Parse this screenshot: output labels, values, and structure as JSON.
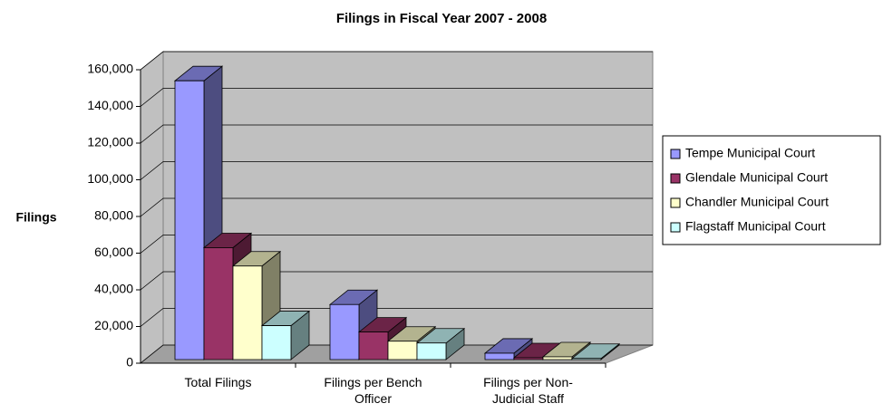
{
  "chart_data": {
    "type": "bar3d",
    "title": "Filings in Fiscal Year 2007 - 2008",
    "y_label": "Filings",
    "categories": [
      "Total Filings",
      "Filings per Bench Officer",
      "Filings per Non-Judicial Staff"
    ],
    "series": [
      {
        "name": "Tempe Municipal Court",
        "color": "#9999ff",
        "values": [
          152000,
          30000,
          3500
        ]
      },
      {
        "name": "Glendale Municipal Court",
        "color": "#993366",
        "values": [
          61000,
          15000,
          1000
        ]
      },
      {
        "name": "Chandler Municipal Court",
        "color": "#ffffcc",
        "values": [
          51000,
          10000,
          1500
        ]
      },
      {
        "name": "Flagstaff Municipal Court",
        "color": "#ccffff",
        "values": [
          18500,
          9000,
          600
        ]
      }
    ],
    "ylim": [
      0,
      160000
    ],
    "yticks": [
      0,
      {
        "value": 20000,
        "label": "20,000"
      },
      {
        "value": 40000,
        "label": "40,000"
      },
      {
        "value": 60000,
        "label": "60,000"
      },
      {
        "value": 80000,
        "label": "80,000"
      },
      {
        "value": 100000,
        "label": "100,000"
      },
      {
        "value": 120000,
        "label": "120,000"
      },
      {
        "value": 140000,
        "label": "140,000"
      },
      {
        "value": 160000,
        "label": "160,000"
      }
    ],
    "grid": true,
    "legend": "right"
  }
}
